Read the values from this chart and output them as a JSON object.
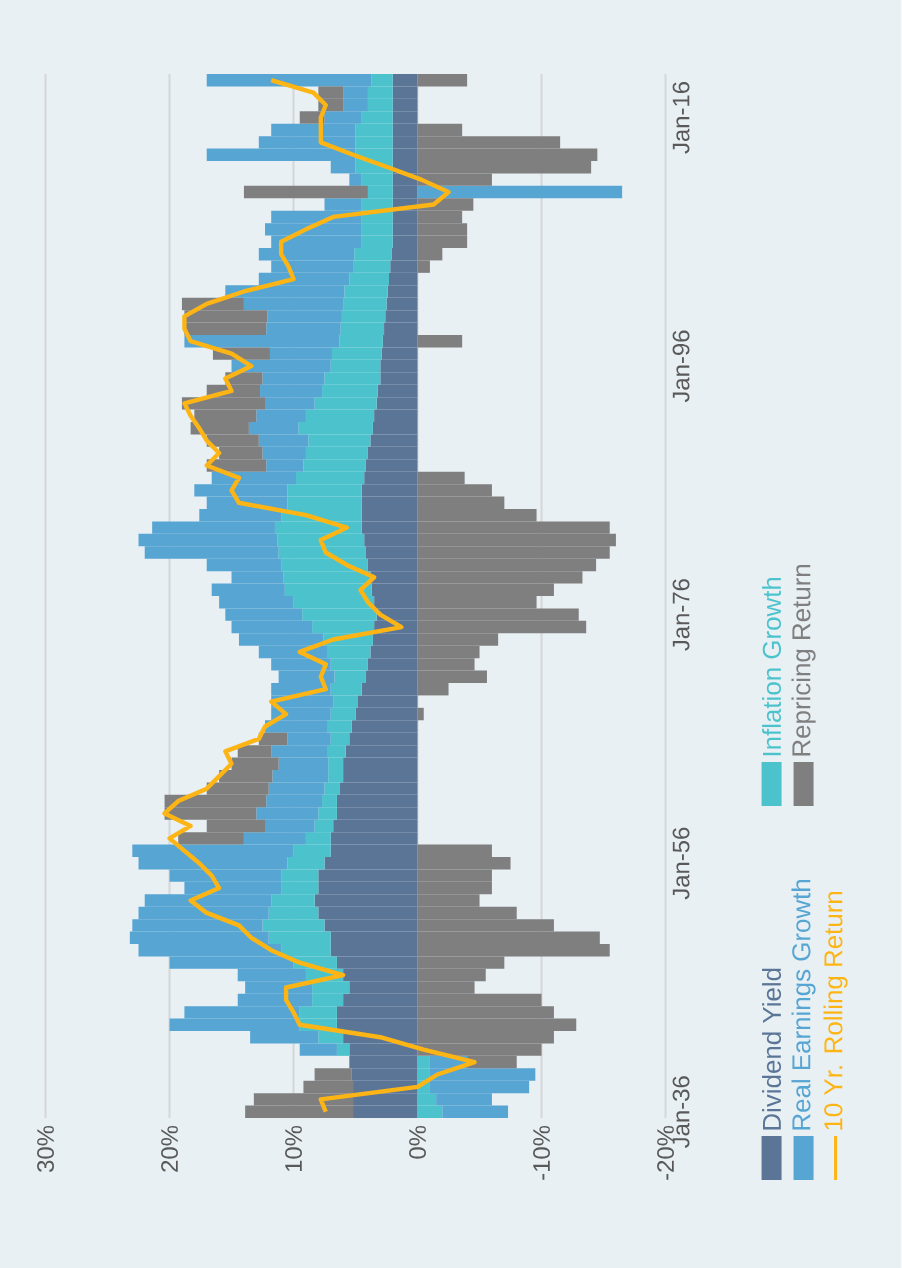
{
  "chart_data": {
    "type": "bar",
    "stacked": true,
    "orientation": "horizontal",
    "x": [
      "1936-01",
      "1937-01",
      "1938-01",
      "1939-01",
      "1940-01",
      "1941-01",
      "1942-01",
      "1943-01",
      "1944-01",
      "1945-01",
      "1946-01",
      "1947-01",
      "1948-01",
      "1949-01",
      "1950-01",
      "1951-01",
      "1952-01",
      "1953-01",
      "1954-01",
      "1955-01",
      "1956-01",
      "1957-01",
      "1958-01",
      "1959-01",
      "1960-01",
      "1961-01",
      "1962-01",
      "1963-01",
      "1964-01",
      "1965-01",
      "1966-01",
      "1967-01",
      "1968-01",
      "1969-01",
      "1970-01",
      "1971-01",
      "1972-01",
      "1973-01",
      "1974-01",
      "1975-01",
      "1976-01",
      "1977-01",
      "1978-01",
      "1979-01",
      "1980-01",
      "1981-01",
      "1982-01",
      "1983-01",
      "1984-01",
      "1985-01",
      "1986-01",
      "1987-01",
      "1988-01",
      "1989-01",
      "1990-01",
      "1991-01",
      "1992-01",
      "1993-01",
      "1994-01",
      "1995-01",
      "1996-01",
      "1997-01",
      "1998-01",
      "1999-01",
      "2000-01",
      "2001-01",
      "2002-01",
      "2003-01",
      "2004-01",
      "2005-01",
      "2006-01",
      "2007-01",
      "2008-01",
      "2009-01",
      "2010-01",
      "2011-01",
      "2012-01",
      "2013-01",
      "2014-01",
      "2015-01",
      "2016-01",
      "2017-01",
      "2018-01",
      "2019-01"
    ],
    "series": [
      {
        "name": "Dividend Yield",
        "color": "#5b7597",
        "values": [
          5.2,
          5.2,
          5.2,
          5.3,
          5.5,
          5.5,
          6,
          6.5,
          6.5,
          6,
          5.5,
          6,
          6.5,
          7,
          7,
          7.5,
          8,
          8.3,
          8,
          8,
          7.5,
          7,
          7,
          6.8,
          6.5,
          6.5,
          6.3,
          6,
          6,
          5.8,
          5.5,
          5.3,
          5,
          4.8,
          4.5,
          4.2,
          4,
          3.8,
          3.6,
          3.5,
          3.3,
          3.5,
          3.7,
          3.8,
          4,
          4.2,
          4.3,
          4.5,
          4.5,
          4.5,
          4.5,
          4.3,
          4.2,
          4,
          3.8,
          3.6,
          3.5,
          3.3,
          3.2,
          3,
          3,
          2.9,
          2.8,
          2.7,
          2.6,
          2.5,
          2.4,
          2.3,
          2.2,
          2.1,
          2,
          2,
          2,
          2,
          2,
          2,
          2,
          2,
          2,
          2,
          2,
          2,
          2,
          2
        ]
      },
      {
        "name": "Inflation Growth",
        "color": "#4cc3cc",
        "values": [
          -2,
          -1.5,
          -1,
          -1,
          -1,
          1,
          2,
          3,
          3,
          2.5,
          3,
          3,
          3.5,
          4,
          5,
          5,
          4,
          3.5,
          3,
          3,
          3,
          3,
          2,
          1.5,
          1.5,
          1.2,
          1.2,
          1.2,
          1.2,
          1.5,
          1.5,
          2,
          2,
          2,
          2.5,
          2.5,
          3,
          3.5,
          4,
          5,
          6,
          6.5,
          7,
          7,
          7,
          7,
          7,
          7,
          6.5,
          6,
          6,
          5.5,
          5,
          5,
          5,
          6,
          5.5,
          5,
          4.5,
          4.5,
          4,
          4,
          3.5,
          3.5,
          3.5,
          3.5,
          3.5,
          3.2,
          3,
          3,
          2.5,
          2.5,
          2.5,
          2.5,
          2,
          2.5,
          3,
          3,
          3,
          3,
          2.5,
          2,
          2,
          1.7
        ]
      },
      {
        "name": "Real Earnings Growth",
        "color": "#56a5d2",
        "values": [
          -5.3,
          -4.5,
          -8,
          -8.5,
          -3,
          3,
          5.5,
          10.5,
          9.3,
          6,
          5.4,
          5.5,
          10,
          11.5,
          11.2,
          10.5,
          10.5,
          10.2,
          7.8,
          9,
          12,
          13,
          5,
          4,
          5,
          4.5,
          4.5,
          4.5,
          4,
          4.5,
          3.5,
          5,
          4.8,
          5,
          4.8,
          4.5,
          4.8,
          5.5,
          6.8,
          6.5,
          6.2,
          6,
          5.9,
          4.2,
          6,
          10.8,
          11.2,
          9.9,
          6.6,
          6.5,
          7.5,
          6.8,
          3,
          3.5,
          4,
          4,
          4,
          4,
          5,
          5,
          8,
          5,
          12.5,
          6,
          6,
          8,
          9.6,
          7.3,
          6.6,
          7.7,
          7.3,
          7.8,
          7.3,
          3,
          -16.5,
          1,
          2,
          12,
          7.8,
          6.8,
          3,
          2,
          2,
          13.3
        ]
      },
      {
        "name": "Repricing Return",
        "color": "#7f7f7f",
        "values": [
          8.7,
          8,
          4,
          3,
          -4,
          -10,
          -11,
          -12.8,
          -11,
          -10,
          -4.6,
          -5.5,
          -7,
          -15.5,
          -14.7,
          -11,
          -8,
          -5,
          -6,
          -6,
          -7.5,
          -6,
          5.3,
          4.7,
          7.4,
          8.2,
          5,
          4.3,
          3.8,
          2.7,
          2.3,
          0,
          -0.5,
          0,
          -2.5,
          -5.6,
          -4.6,
          -5,
          -6.5,
          -13.6,
          -13,
          -9.6,
          -11,
          -13.3,
          -14.4,
          -15.5,
          -16,
          -15.5,
          -9.6,
          -7,
          -6,
          -3.8,
          4.8,
          3.5,
          4.2,
          4.7,
          5,
          6.7,
          4.3,
          3,
          0,
          4.6,
          -3.6,
          6.6,
          6.7,
          5,
          0,
          0,
          -1,
          -2,
          -4,
          -4,
          -3.6,
          -4.5,
          10,
          -6,
          -14,
          -14.5,
          -11.5,
          -3.6,
          2,
          2,
          2,
          -4
        ]
      },
      {
        "name": "10 Yr. Rolling Return",
        "type": "line",
        "color": "#fdb515",
        "values": [
          7.4,
          7.8,
          0,
          -1.6,
          -4.6,
          -0.5,
          3,
          9.5,
          10,
          10.6,
          10.6,
          6,
          9.5,
          11.8,
          13.4,
          14.4,
          17,
          18.3,
          16,
          16.6,
          17.6,
          18.8,
          20,
          18.3,
          20.4,
          19.3,
          17,
          16,
          15,
          15.5,
          12.8,
          12.3,
          10.6,
          11.8,
          7.4,
          7.8,
          7.4,
          9.5,
          6.8,
          1.3,
          3,
          4,
          4.6,
          3.5,
          5.7,
          7.4,
          7.8,
          5.7,
          9,
          14.4,
          15,
          14.4,
          17,
          16,
          17,
          17.6,
          18.3,
          18.8,
          15,
          15.5,
          13.4,
          15,
          18.3,
          18.8,
          18.8,
          17,
          14,
          10,
          10.4,
          11,
          11,
          9,
          6.8,
          -1.3,
          -2.5,
          -0.3,
          2.4,
          5.2,
          7.8,
          7.8,
          7.8,
          7.4,
          8.4,
          11.8
        ]
      }
    ],
    "ylim": [
      "1935-07",
      "2019-07"
    ],
    "yticks": [
      {
        "value": "1936-01",
        "label": "Jan-36"
      },
      {
        "value": "1956-01",
        "label": "Jan-56"
      },
      {
        "value": "1976-01",
        "label": "Jan-76"
      },
      {
        "value": "1996-01",
        "label": "Jan-96"
      },
      {
        "value": "2016-01",
        "label": "Jan-16"
      }
    ],
    "xlim": [
      30,
      -20
    ],
    "xticks": [
      {
        "value": -20,
        "label": "-20%"
      },
      {
        "value": -10,
        "label": "-10%"
      },
      {
        "value": 0,
        "label": "0%"
      },
      {
        "value": 10,
        "label": "10%"
      },
      {
        "value": 20,
        "label": "20%"
      },
      {
        "value": 30,
        "label": "30%"
      }
    ],
    "grid": "x",
    "legend": "right"
  }
}
